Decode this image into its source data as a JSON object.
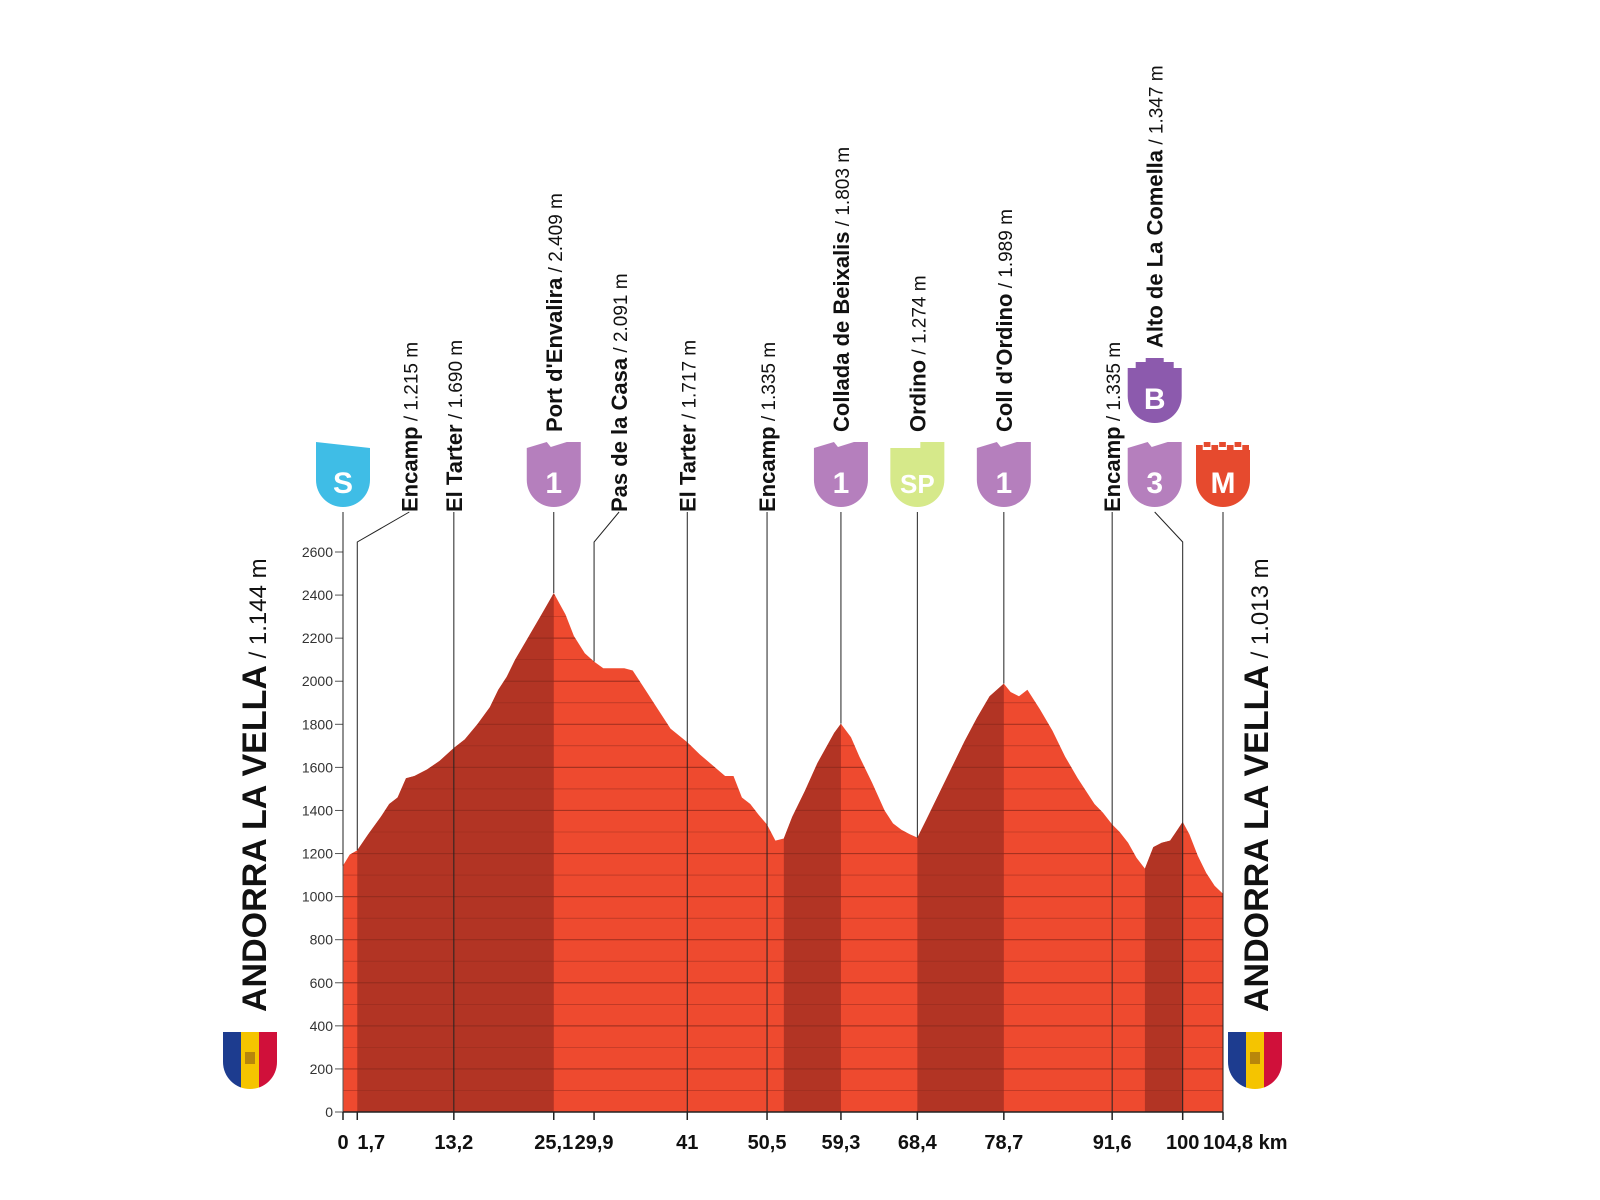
{
  "chart_data": {
    "type": "area",
    "title": "",
    "xlabel": "",
    "ylabel": "",
    "x_unit": "km",
    "ylim": [
      0,
      2600
    ],
    "yticks": [
      0,
      200,
      400,
      600,
      800,
      1000,
      1200,
      1400,
      1600,
      1800,
      2000,
      2200,
      2400,
      2600
    ],
    "xlim": [
      0,
      104.8
    ],
    "x_tick_labels": [
      {
        "km": 0,
        "label": "0"
      },
      {
        "km": 1.7,
        "label": "1,7"
      },
      {
        "km": 13.2,
        "label": "13,2"
      },
      {
        "km": 25.1,
        "label": "25,1"
      },
      {
        "km": 29.9,
        "label": "29,9"
      },
      {
        "km": 41,
        "label": "41"
      },
      {
        "km": 50.5,
        "label": "50,5"
      },
      {
        "km": 59.3,
        "label": "59,3"
      },
      {
        "km": 68.4,
        "label": "68,4"
      },
      {
        "km": 78.7,
        "label": "78,7"
      },
      {
        "km": 91.6,
        "label": "91,6"
      },
      {
        "km": 100,
        "label": "100"
      },
      {
        "km": 104.8,
        "label": "104,8 km"
      }
    ],
    "profile": [
      [
        0,
        1144
      ],
      [
        0.8,
        1195
      ],
      [
        1.7,
        1215
      ],
      [
        3,
        1290
      ],
      [
        4.5,
        1370
      ],
      [
        5.5,
        1430
      ],
      [
        6.5,
        1460
      ],
      [
        7.5,
        1550
      ],
      [
        8.5,
        1560
      ],
      [
        10,
        1590
      ],
      [
        11.5,
        1630
      ],
      [
        13.2,
        1690
      ],
      [
        14.5,
        1730
      ],
      [
        16,
        1800
      ],
      [
        17.5,
        1880
      ],
      [
        18.5,
        1960
      ],
      [
        19.5,
        2020
      ],
      [
        20.5,
        2100
      ],
      [
        22,
        2200
      ],
      [
        23.5,
        2300
      ],
      [
        25.1,
        2409
      ],
      [
        26.5,
        2310
      ],
      [
        27.5,
        2210
      ],
      [
        28.8,
        2130
      ],
      [
        29.9,
        2091
      ],
      [
        31,
        2060
      ],
      [
        33.5,
        2060
      ],
      [
        34.5,
        2050
      ],
      [
        36,
        1960
      ],
      [
        37.5,
        1870
      ],
      [
        39,
        1780
      ],
      [
        41,
        1717
      ],
      [
        42.5,
        1660
      ],
      [
        44,
        1610
      ],
      [
        45.5,
        1560
      ],
      [
        46.5,
        1560
      ],
      [
        47.5,
        1460
      ],
      [
        48.5,
        1430
      ],
      [
        49.5,
        1380
      ],
      [
        50.5,
        1335
      ],
      [
        51.5,
        1260
      ],
      [
        52.5,
        1270
      ],
      [
        53.5,
        1370
      ],
      [
        55,
        1490
      ],
      [
        56.5,
        1620
      ],
      [
        57.5,
        1690
      ],
      [
        58.5,
        1760
      ],
      [
        59.3,
        1803
      ],
      [
        60.5,
        1740
      ],
      [
        61.5,
        1650
      ],
      [
        63,
        1530
      ],
      [
        64.5,
        1400
      ],
      [
        65.5,
        1340
      ],
      [
        66.5,
        1310
      ],
      [
        67.5,
        1290
      ],
      [
        68.4,
        1274
      ],
      [
        69.5,
        1360
      ],
      [
        71,
        1480
      ],
      [
        72.5,
        1600
      ],
      [
        74,
        1720
      ],
      [
        75.5,
        1830
      ],
      [
        77,
        1930
      ],
      [
        78.7,
        1989
      ],
      [
        79.5,
        1950
      ],
      [
        80.5,
        1930
      ],
      [
        81.5,
        1960
      ],
      [
        83,
        1870
      ],
      [
        84.5,
        1770
      ],
      [
        86,
        1650
      ],
      [
        87.5,
        1550
      ],
      [
        88.5,
        1490
      ],
      [
        89.5,
        1430
      ],
      [
        90.5,
        1390
      ],
      [
        91.6,
        1335
      ],
      [
        92.5,
        1300
      ],
      [
        93.5,
        1250
      ],
      [
        94.5,
        1180
      ],
      [
        95.5,
        1130
      ],
      [
        96.5,
        1230
      ],
      [
        97.5,
        1250
      ],
      [
        98.5,
        1260
      ],
      [
        99.2,
        1300
      ],
      [
        100,
        1347
      ],
      [
        100.8,
        1290
      ],
      [
        101.8,
        1190
      ],
      [
        102.8,
        1110
      ],
      [
        103.8,
        1050
      ],
      [
        104.8,
        1013
      ]
    ],
    "climb_shading": [
      [
        1.7,
        25.1
      ],
      [
        52.5,
        59.3
      ],
      [
        68.4,
        78.7
      ],
      [
        95.5,
        100
      ]
    ],
    "waypoints": [
      {
        "name": "Encamp",
        "alt": " / 1.215 m",
        "km": 1.7,
        "badge": ""
      },
      {
        "name": "El Tarter",
        "alt": " / 1.690 m",
        "km": 13.2,
        "badge": ""
      },
      {
        "name": "Port d'Envalira",
        "alt": " / 2.409 m",
        "km": 25.1,
        "badge": "1"
      },
      {
        "name": "Pas de la Casa",
        "alt": " / 2.091 m",
        "km": 29.9,
        "badge": ""
      },
      {
        "name": "El Tarter",
        "alt": " / 1.717 m",
        "km": 41,
        "badge": ""
      },
      {
        "name": "Encamp",
        "alt": " / 1.335 m",
        "km": 50.5,
        "badge": ""
      },
      {
        "name": "Collada de Beixalis",
        "alt": " / 1.803 m",
        "km": 59.3,
        "badge": "1"
      },
      {
        "name": "Ordino",
        "alt": " / 1.274 m",
        "km": 68.4,
        "badge": "SP"
      },
      {
        "name": "Coll d'Ordino",
        "alt": " / 1.989 m",
        "km": 78.7,
        "badge": "1"
      },
      {
        "name": "Encamp",
        "alt": " / 1.335 m",
        "km": 91.6,
        "badge": ""
      },
      {
        "name": "Alto de La Comella",
        "alt": " / 1.347 m",
        "km": 100,
        "badge": "3"
      }
    ],
    "badges": {
      "start": "S",
      "finish": "M",
      "bonus": "B",
      "colors": {
        "start": "#3fbde6",
        "climb": "#b57fbd",
        "sprint": "#d6e98a",
        "bonus": "#8c5aad",
        "finish": "#e64a2e"
      }
    },
    "start": {
      "name": "ANDORRA LA VELLA",
      "alt": " / 1.144 m"
    },
    "finish": {
      "name": "ANDORRA LA VELLA",
      "alt": " / 1.013 m"
    },
    "colors": {
      "profile_light": "#ee4a2f",
      "profile_dark": "#b23424",
      "band_line": "#8f2a1c"
    }
  }
}
